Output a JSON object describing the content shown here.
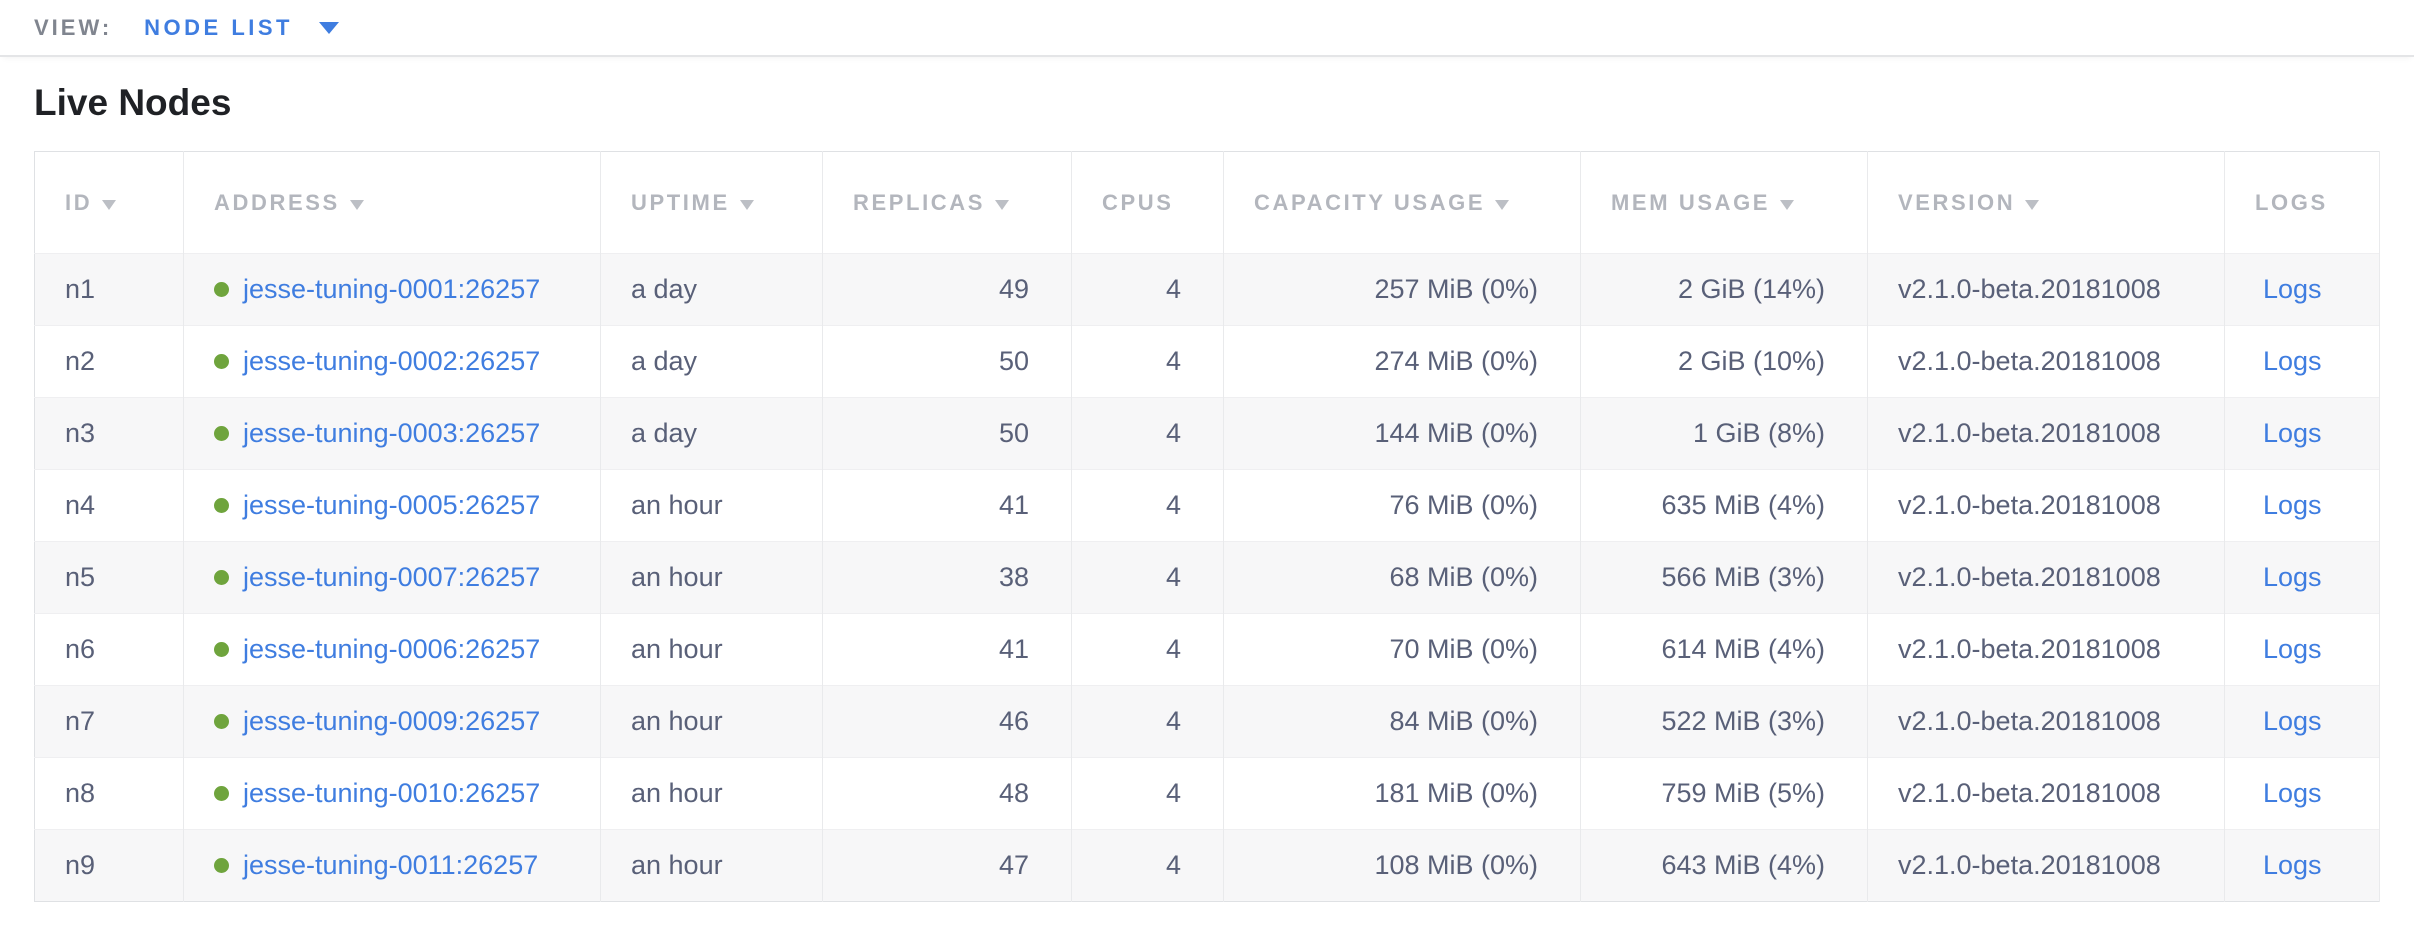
{
  "view_bar": {
    "label": "VIEW:",
    "selected": "NODE LIST"
  },
  "page": {
    "title": "Live Nodes"
  },
  "colors": {
    "link_blue": "#3f7de0",
    "node_live_green": "#6fa43d",
    "header_gray": "#b3b6bd",
    "cell_text": "#596078",
    "row_stripe": "#f7f7f8",
    "border": "#e9eaec"
  },
  "table": {
    "columns": [
      {
        "label": "ID",
        "sortable": true
      },
      {
        "label": "ADDRESS",
        "sortable": true
      },
      {
        "label": "UPTIME",
        "sortable": true
      },
      {
        "label": "REPLICAS",
        "sortable": true
      },
      {
        "label": "CPUS",
        "sortable": false
      },
      {
        "label": "CAPACITY USAGE",
        "sortable": true
      },
      {
        "label": "MEM USAGE",
        "sortable": true
      },
      {
        "label": "VERSION",
        "sortable": true
      },
      {
        "label": "LOGS",
        "sortable": false
      }
    ],
    "rows": [
      {
        "id": "n1",
        "address": "jesse-tuning-0001:26257",
        "uptime": "a day",
        "replicas": "49",
        "cpus": "4",
        "capacity": "257 MiB (0%)",
        "mem": "2 GiB (14%)",
        "version": "v2.1.0-beta.20181008",
        "logs": "Logs"
      },
      {
        "id": "n2",
        "address": "jesse-tuning-0002:26257",
        "uptime": "a day",
        "replicas": "50",
        "cpus": "4",
        "capacity": "274 MiB (0%)",
        "mem": "2 GiB (10%)",
        "version": "v2.1.0-beta.20181008",
        "logs": "Logs"
      },
      {
        "id": "n3",
        "address": "jesse-tuning-0003:26257",
        "uptime": "a day",
        "replicas": "50",
        "cpus": "4",
        "capacity": "144 MiB (0%)",
        "mem": "1 GiB (8%)",
        "version": "v2.1.0-beta.20181008",
        "logs": "Logs"
      },
      {
        "id": "n4",
        "address": "jesse-tuning-0005:26257",
        "uptime": "an hour",
        "replicas": "41",
        "cpus": "4",
        "capacity": "76 MiB (0%)",
        "mem": "635 MiB (4%)",
        "version": "v2.1.0-beta.20181008",
        "logs": "Logs"
      },
      {
        "id": "n5",
        "address": "jesse-tuning-0007:26257",
        "uptime": "an hour",
        "replicas": "38",
        "cpus": "4",
        "capacity": "68 MiB (0%)",
        "mem": "566 MiB (3%)",
        "version": "v2.1.0-beta.20181008",
        "logs": "Logs"
      },
      {
        "id": "n6",
        "address": "jesse-tuning-0006:26257",
        "uptime": "an hour",
        "replicas": "41",
        "cpus": "4",
        "capacity": "70 MiB (0%)",
        "mem": "614 MiB (4%)",
        "version": "v2.1.0-beta.20181008",
        "logs": "Logs"
      },
      {
        "id": "n7",
        "address": "jesse-tuning-0009:26257",
        "uptime": "an hour",
        "replicas": "46",
        "cpus": "4",
        "capacity": "84 MiB (0%)",
        "mem": "522 MiB (3%)",
        "version": "v2.1.0-beta.20181008",
        "logs": "Logs"
      },
      {
        "id": "n8",
        "address": "jesse-tuning-0010:26257",
        "uptime": "an hour",
        "replicas": "48",
        "cpus": "4",
        "capacity": "181 MiB (0%)",
        "mem": "759 MiB (5%)",
        "version": "v2.1.0-beta.20181008",
        "logs": "Logs"
      },
      {
        "id": "n9",
        "address": "jesse-tuning-0011:26257",
        "uptime": "an hour",
        "replicas": "47",
        "cpus": "4",
        "capacity": "108 MiB (0%)",
        "mem": "643 MiB (4%)",
        "version": "v2.1.0-beta.20181008",
        "logs": "Logs"
      }
    ]
  }
}
